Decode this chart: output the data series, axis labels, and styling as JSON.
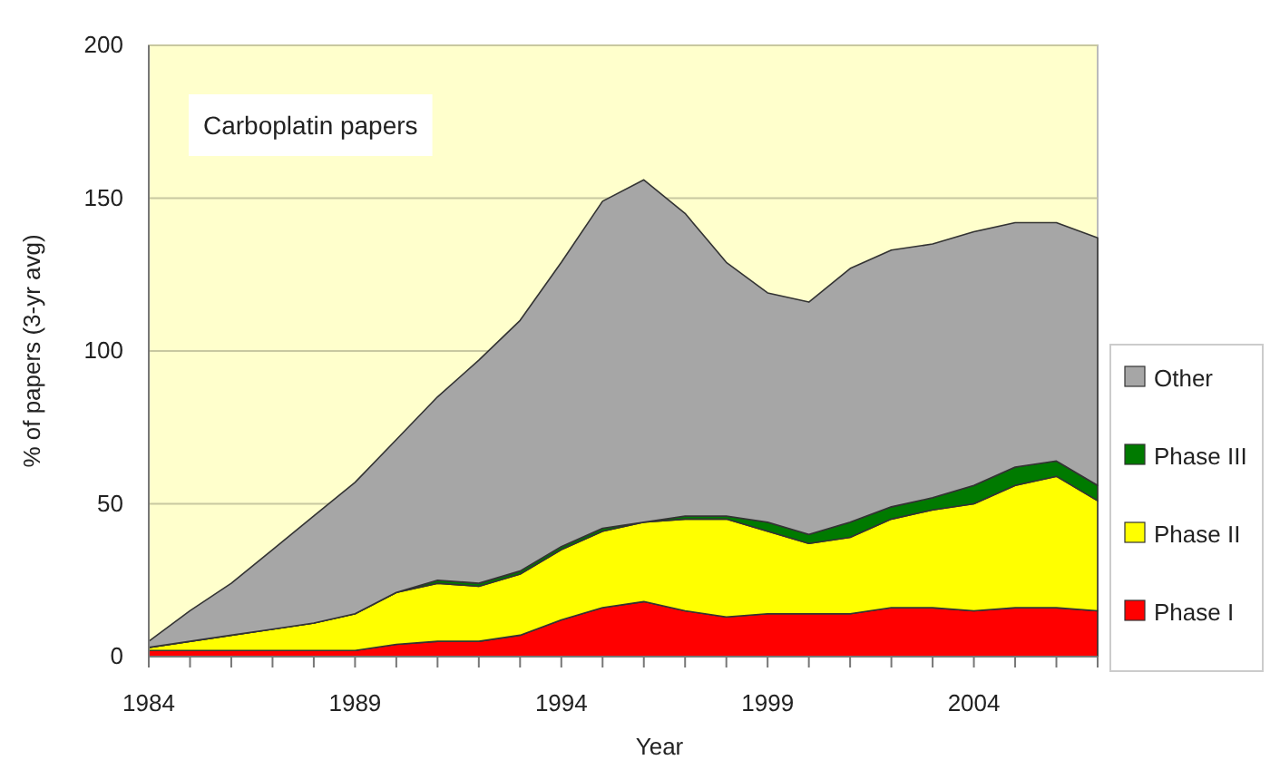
{
  "chart_data": {
    "type": "area",
    "stacked": true,
    "xlabel": "Year",
    "ylabel": "% of papers (3-yr avg)",
    "annotations": [
      "Carboplatin papers"
    ],
    "x": [
      1984,
      1985,
      1986,
      1987,
      1988,
      1989,
      1990,
      1991,
      1992,
      1993,
      1994,
      1995,
      1996,
      1997,
      1998,
      1999,
      2000,
      2001,
      2002,
      2003,
      2004,
      2005,
      2006,
      2007
    ],
    "xlim": [
      1984,
      2007
    ],
    "xticks": [
      1984,
      {
        "value": 1985,
        "label": null
      },
      {
        "value": 1986,
        "label": null
      },
      {
        "value": 1987,
        "label": null
      },
      {
        "value": 1988,
        "label": null
      },
      1989,
      {
        "value": 1990,
        "label": null
      },
      {
        "value": 1991,
        "label": null
      },
      {
        "value": 1992,
        "label": null
      },
      {
        "value": 1993,
        "label": null
      },
      1994,
      {
        "value": 1995,
        "label": null
      },
      {
        "value": 1996,
        "label": null
      },
      {
        "value": 1997,
        "label": null
      },
      {
        "value": 1998,
        "label": null
      },
      1999,
      {
        "value": 2000,
        "label": null
      },
      {
        "value": 2001,
        "label": null
      },
      {
        "value": 2002,
        "label": null
      },
      {
        "value": 2003,
        "label": null
      },
      2004,
      {
        "value": 2005,
        "label": null
      },
      {
        "value": 2006,
        "label": null
      },
      {
        "value": 2007,
        "label": null
      }
    ],
    "ylim": [
      0,
      200
    ],
    "yticks": [
      0,
      50,
      100,
      150,
      200
    ],
    "grid": "y",
    "legend": "right",
    "series": [
      {
        "name": "Phase I",
        "color": "#ff0000",
        "values": [
          2,
          2,
          2,
          2,
          2,
          2,
          4,
          5,
          5,
          7,
          12,
          16,
          18,
          15,
          13,
          14,
          14,
          14,
          16,
          16,
          15,
          16,
          16,
          15
        ]
      },
      {
        "name": "Phase II",
        "color": "#ffff00",
        "values": [
          1,
          3,
          5,
          7,
          9,
          12,
          17,
          19,
          18,
          20,
          23,
          25,
          26,
          30,
          32,
          27,
          23,
          25,
          29,
          32,
          35,
          40,
          43,
          36
        ]
      },
      {
        "name": "Phase III",
        "color": "#007a00",
        "values": [
          0,
          0,
          0,
          0,
          0,
          0,
          0,
          1,
          1,
          1,
          1,
          1,
          0,
          1,
          1,
          3,
          3,
          5,
          4,
          4,
          6,
          6,
          5,
          5
        ]
      },
      {
        "name": "Other",
        "color": "#a6a6a6",
        "values": [
          2,
          10,
          17,
          26,
          35,
          43,
          50,
          60,
          73,
          82,
          93,
          107,
          112,
          99,
          83,
          75,
          76,
          83,
          84,
          83,
          83,
          80,
          78,
          81
        ]
      }
    ]
  }
}
